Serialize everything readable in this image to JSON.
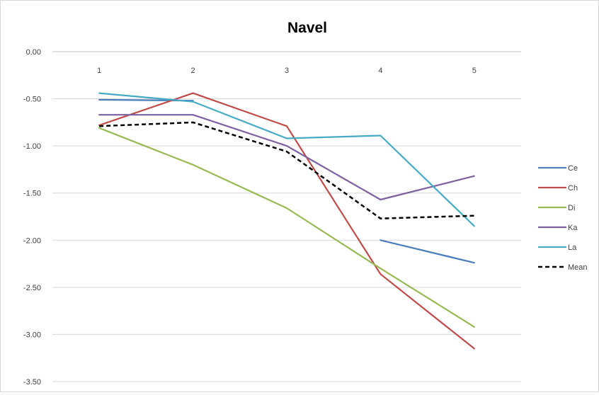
{
  "chart_data": {
    "type": "line",
    "title": "Navel",
    "xlabel": "",
    "ylabel": "",
    "categories": [
      "1",
      "2",
      "3",
      "4",
      "5"
    ],
    "y_ticks": [
      "0.00",
      "-0.50",
      "-1.00",
      "-1.50",
      "-2.00",
      "-2.50",
      "-3.00",
      "-3.50"
    ],
    "ylim": [
      -3.5,
      0
    ],
    "x_axis_position": "top",
    "grid": true,
    "legend_position": "right",
    "series": [
      {
        "name": "Ce",
        "color": "#4a7ebb",
        "dashed": false,
        "values": [
          -0.51,
          -0.52,
          null,
          -2.0,
          -2.24
        ]
      },
      {
        "name": "Ch",
        "color": "#be4b48",
        "dashed": false,
        "values": [
          -0.78,
          -0.44,
          -0.79,
          -2.36,
          -3.15
        ]
      },
      {
        "name": "Di",
        "color": "#98b954",
        "dashed": false,
        "values": [
          -0.81,
          -1.2,
          -1.66,
          -2.3,
          -2.92
        ]
      },
      {
        "name": "Ka",
        "color": "#7d60a0",
        "dashed": false,
        "values": [
          -0.67,
          -0.67,
          -1.0,
          -1.57,
          -1.32
        ]
      },
      {
        "name": "La",
        "color": "#46aac5",
        "dashed": false,
        "values": [
          -0.44,
          -0.53,
          -0.92,
          -0.89,
          -1.85
        ]
      },
      {
        "name": "Mean",
        "color": "#000000",
        "dashed": true,
        "values": [
          -0.79,
          -0.75,
          -1.06,
          -1.77,
          -1.74
        ]
      }
    ]
  }
}
